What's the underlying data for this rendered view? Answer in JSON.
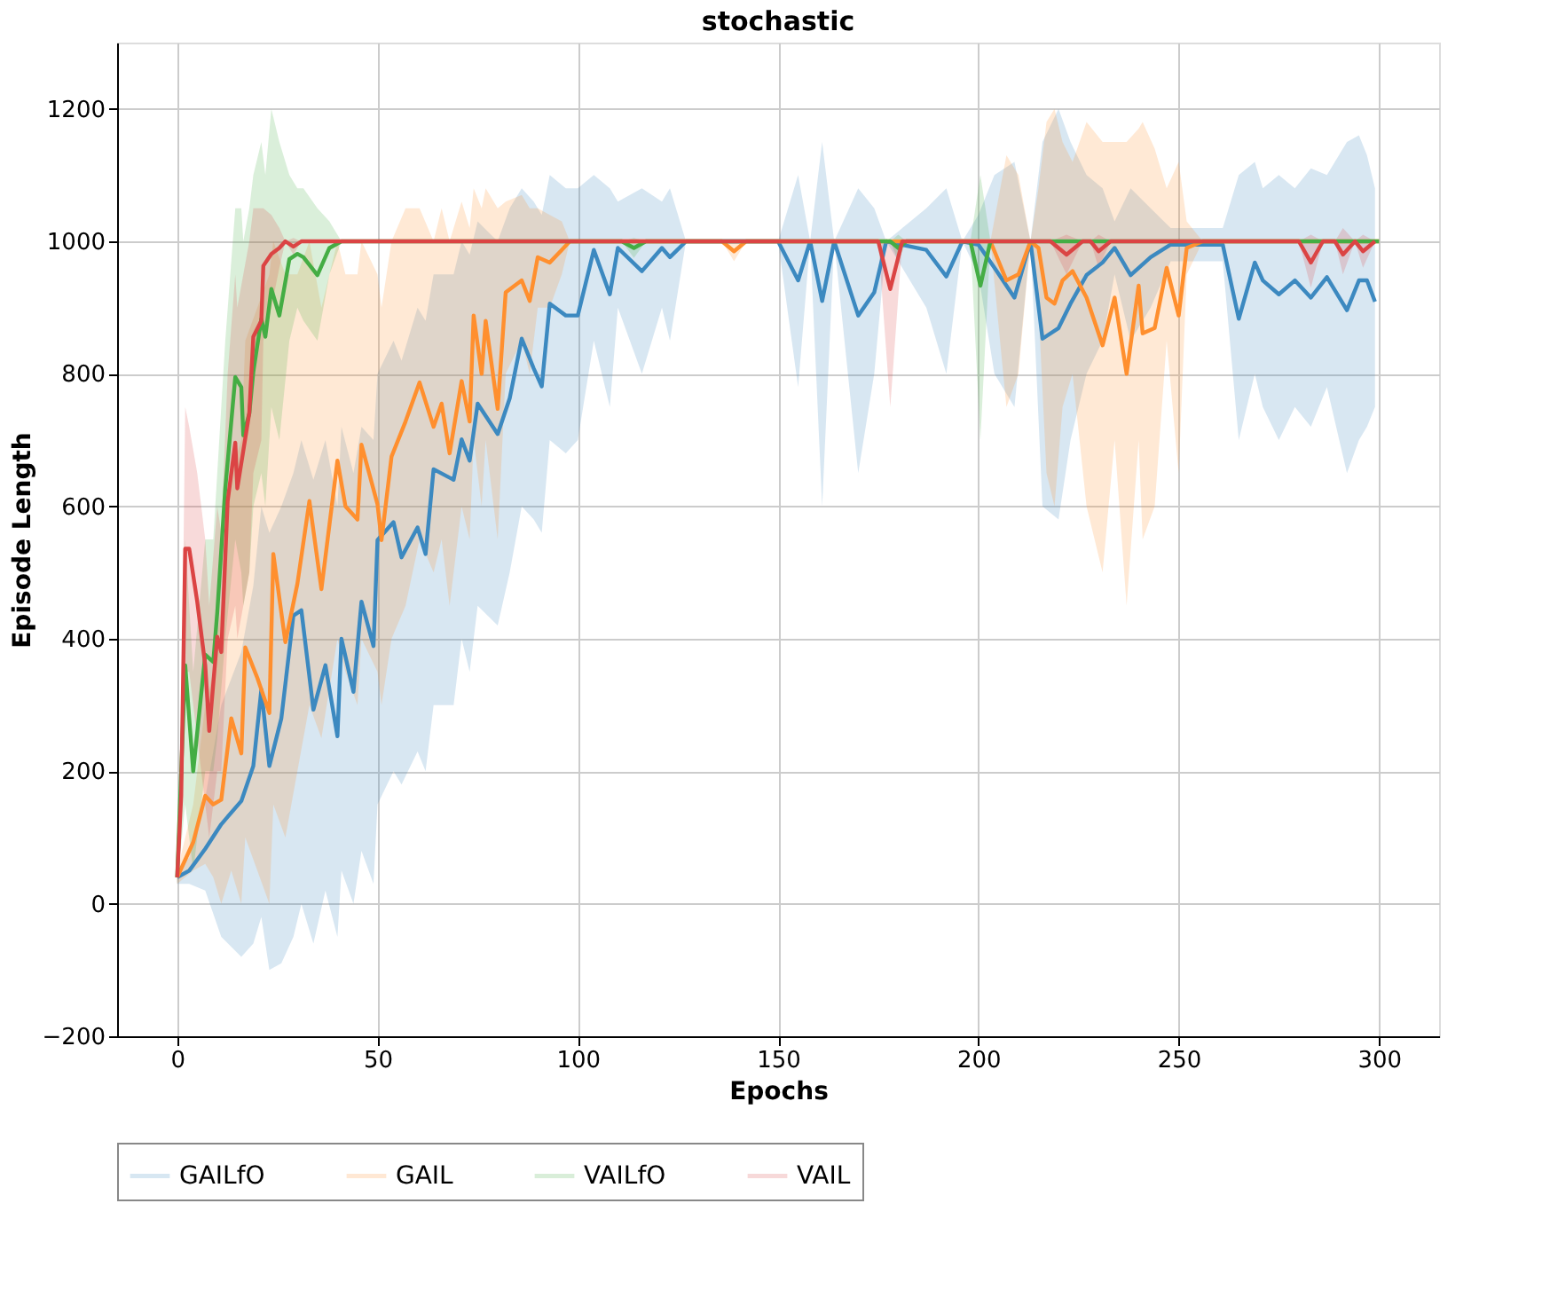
{
  "chart_data": {
    "type": "line",
    "title": "stochastic",
    "xlabel": "Epochs",
    "ylabel": "Episode Length",
    "xlim": [
      -15,
      315
    ],
    "xticks": [
      0,
      50,
      100,
      150,
      200,
      250,
      300
    ],
    "ylim": [
      -200,
      1300
    ],
    "yticks": [
      -200,
      0,
      200,
      400,
      600,
      800,
      1000,
      1200
    ],
    "grid": true,
    "legend": "bottom",
    "line_style": "solid",
    "series": [
      {
        "name": "GAILfO",
        "color": "#3c89c0",
        "x": [
          0,
          3,
          7,
          11,
          16,
          19,
          21,
          23,
          26,
          29,
          31,
          34,
          37,
          40,
          41,
          44,
          46,
          49,
          50,
          54,
          56,
          60,
          62,
          64,
          69,
          71,
          73,
          75,
          80,
          83,
          86,
          89,
          91,
          93,
          97,
          100,
          104,
          108,
          110,
          116,
          121,
          123,
          127,
          150,
          155,
          158,
          161,
          164,
          170,
          174,
          177,
          187,
          192,
          196,
          200,
          204,
          209,
          213,
          216,
          220,
          223,
          227,
          231,
          234,
          238,
          243,
          248,
          261,
          265,
          269,
          271,
          275,
          279,
          283,
          287,
          292,
          295,
          297,
          299
        ],
        "values": [
          40,
          50,
          83,
          120,
          155,
          208,
          323,
          208,
          280,
          435,
          443,
          293,
          360,
          253,
          400,
          320,
          456,
          389,
          549,
          576,
          523,
          568,
          528,
          656,
          640,
          701,
          669,
          755,
          709,
          763,
          853,
          808,
          781,
          906,
          888,
          888,
          987,
          920,
          990,
          955,
          990,
          976,
          1000,
          1000,
          941,
          1000,
          910,
          1000,
          888,
          923,
          1000,
          987,
          947,
          1000,
          995,
          960,
          915,
          1000,
          853,
          869,
          906,
          949,
          968,
          990,
          949,
          976,
          995,
          995,
          883,
          968,
          941,
          920,
          941,
          915,
          946,
          896,
          941,
          941,
          909
        ],
        "lower": [
          30,
          30,
          20,
          -50,
          -80,
          -60,
          -20,
          -100,
          -90,
          -50,
          0,
          -60,
          20,
          -50,
          50,
          0,
          80,
          30,
          150,
          200,
          180,
          230,
          200,
          300,
          300,
          400,
          350,
          450,
          420,
          500,
          600,
          580,
          560,
          700,
          680,
          700,
          850,
          750,
          900,
          800,
          900,
          850,
          1000,
          1000,
          780,
          1000,
          600,
          1000,
          650,
          800,
          1000,
          900,
          800,
          1000,
          950,
          800,
          750,
          1000,
          600,
          580,
          700,
          800,
          850,
          950,
          850,
          900,
          970,
          970,
          700,
          800,
          750,
          700,
          750,
          720,
          780,
          650,
          700,
          720,
          750
        ],
        "upper": [
          50,
          70,
          160,
          300,
          380,
          480,
          600,
          560,
          600,
          650,
          700,
          640,
          700,
          600,
          720,
          650,
          720,
          700,
          800,
          850,
          820,
          900,
          880,
          950,
          950,
          1000,
          980,
          1030,
          1000,
          1050,
          1080,
          1060,
          1040,
          1100,
          1080,
          1080,
          1100,
          1080,
          1060,
          1080,
          1060,
          1080,
          1000,
          1000,
          1100,
          1000,
          1150,
          1000,
          1080,
          1050,
          1000,
          1050,
          1080,
          1000,
          1040,
          1100,
          1120,
          1000,
          1150,
          1200,
          1150,
          1100,
          1080,
          1030,
          1080,
          1050,
          1020,
          1020,
          1100,
          1120,
          1080,
          1100,
          1080,
          1110,
          1100,
          1150,
          1160,
          1130,
          1080
        ]
      },
      {
        "name": "GAIL",
        "color": "#ff8f2e",
        "x": [
          0,
          4,
          7,
          9,
          11,
          13.5,
          16,
          17,
          20,
          23,
          24,
          27,
          30,
          33,
          36,
          40,
          42,
          45,
          46,
          50,
          51,
          53.5,
          57,
          60.5,
          64,
          66,
          68,
          71,
          73,
          74,
          76,
          77,
          80,
          82,
          86,
          88,
          90,
          93,
          96,
          98,
          136,
          139,
          142,
          203,
          207,
          210,
          213,
          215,
          217,
          219,
          221,
          223.5,
          227,
          231,
          234,
          237,
          240,
          241,
          244,
          247,
          250,
          252,
          256,
          300
        ],
        "values": [
          40,
          93,
          163,
          150,
          157,
          280,
          227,
          387,
          341,
          288,
          528,
          395,
          483,
          608,
          475,
          669,
          600,
          580,
          693,
          603,
          549,
          675,
          728,
          787,
          720,
          755,
          680,
          789,
          728,
          888,
          800,
          880,
          747,
          923,
          941,
          910,
          976,
          968,
          987,
          1000,
          1000,
          985,
          1000,
          1000,
          941,
          950,
          1000,
          990,
          915,
          906,
          941,
          955,
          915,
          843,
          915,
          800,
          933,
          861,
          869,
          960,
          888,
          990,
          1000,
          1000
        ],
        "lower": [
          30,
          50,
          60,
          40,
          0,
          50,
          0,
          100,
          50,
          0,
          150,
          100,
          200,
          300,
          250,
          400,
          350,
          300,
          400,
          350,
          300,
          400,
          450,
          550,
          500,
          550,
          450,
          600,
          550,
          700,
          600,
          700,
          550,
          800,
          850,
          800,
          900,
          900,
          950,
          1000,
          1000,
          970,
          1000,
          1000,
          750,
          800,
          1000,
          900,
          650,
          600,
          750,
          800,
          600,
          500,
          700,
          450,
          700,
          550,
          600,
          850,
          650,
          950,
          1000,
          1000
        ],
        "upper": [
          50,
          150,
          300,
          350,
          450,
          650,
          700,
          850,
          900,
          950,
          1000,
          950,
          950,
          1000,
          900,
          1000,
          950,
          950,
          1000,
          950,
          900,
          1000,
          1050,
          1050,
          1000,
          1050,
          1000,
          1060,
          1020,
          1080,
          1050,
          1080,
          1050,
          1060,
          1070,
          1050,
          1050,
          1040,
          1030,
          1000,
          1000,
          1000,
          1000,
          1000,
          1130,
          1100,
          1000,
          1080,
          1180,
          1200,
          1150,
          1120,
          1180,
          1150,
          1150,
          1150,
          1170,
          1180,
          1140,
          1080,
          1120,
          1030,
          1000,
          1000
        ]
      },
      {
        "name": "VAILfO",
        "color": "#44ad44",
        "x": [
          0,
          2,
          4,
          7,
          9,
          10,
          12,
          14.5,
          16,
          16.5,
          18,
          19,
          21,
          22,
          23.5,
          25.5,
          28,
          30,
          31.5,
          35,
          38,
          41,
          111,
          114,
          117,
          178,
          180,
          182,
          198,
          200.5,
          203,
          300
        ],
        "values": [
          40,
          360,
          200,
          376,
          365,
          440,
          627,
          795,
          780,
          707,
          740,
          803,
          883,
          856,
          928,
          888,
          973,
          981,
          976,
          949,
          990,
          1000,
          1000,
          990,
          1000,
          1000,
          990,
          1000,
          1000,
          933,
          1000,
          1000
        ],
        "lower": [
          30,
          150,
          50,
          200,
          200,
          250,
          400,
          550,
          500,
          450,
          500,
          600,
          650,
          600,
          750,
          700,
          850,
          900,
          880,
          850,
          950,
          1000,
          1000,
          975,
          1000,
          1000,
          970,
          1000,
          1000,
          700,
          1000,
          1000
        ],
        "upper": [
          50,
          550,
          350,
          550,
          550,
          650,
          850,
          1050,
          1050,
          1000,
          1050,
          1100,
          1150,
          1100,
          1200,
          1150,
          1100,
          1080,
          1080,
          1050,
          1030,
          1000,
          1000,
          1005,
          1000,
          1000,
          1010,
          1000,
          1000,
          1100,
          1000,
          1000
        ]
      },
      {
        "name": "VAIL",
        "color": "#db4444",
        "x": [
          0,
          1,
          2,
          3,
          5,
          7,
          8,
          10,
          11,
          12.6,
          14.5,
          15,
          18,
          19,
          21,
          21.5,
          23.5,
          25.5,
          27,
          29,
          31,
          175,
          178,
          181,
          218,
          222,
          226,
          228,
          230,
          233,
          280,
          283,
          286,
          289,
          291,
          294,
          296,
          299
        ],
        "values": [
          40,
          163,
          536,
          536,
          456,
          360,
          261,
          403,
          380,
          608,
          696,
          627,
          741,
          856,
          880,
          963,
          981,
          990,
          1000,
          992,
          1000,
          1000,
          928,
          1000,
          1000,
          980,
          1000,
          1000,
          985,
          1000,
          1000,
          968,
          1000,
          1000,
          980,
          1000,
          985,
          1000
        ],
        "lower": [
          30,
          100,
          350,
          350,
          250,
          150,
          100,
          200,
          200,
          400,
          450,
          400,
          500,
          650,
          700,
          850,
          900,
          960,
          1000,
          980,
          1000,
          1000,
          750,
          1000,
          1000,
          950,
          1000,
          1000,
          960,
          1000,
          1000,
          930,
          1000,
          1000,
          950,
          1000,
          960,
          1000
        ],
        "upper": [
          50,
          250,
          750,
          720,
          650,
          550,
          450,
          600,
          560,
          800,
          950,
          900,
          1000,
          1050,
          1050,
          1050,
          1040,
          1020,
          1000,
          1005,
          1000,
          1000,
          1000,
          1000,
          1000,
          1010,
          1000,
          1000,
          1010,
          1000,
          1000,
          1010,
          1000,
          1000,
          1020,
          1000,
          1010,
          1000
        ]
      }
    ]
  }
}
